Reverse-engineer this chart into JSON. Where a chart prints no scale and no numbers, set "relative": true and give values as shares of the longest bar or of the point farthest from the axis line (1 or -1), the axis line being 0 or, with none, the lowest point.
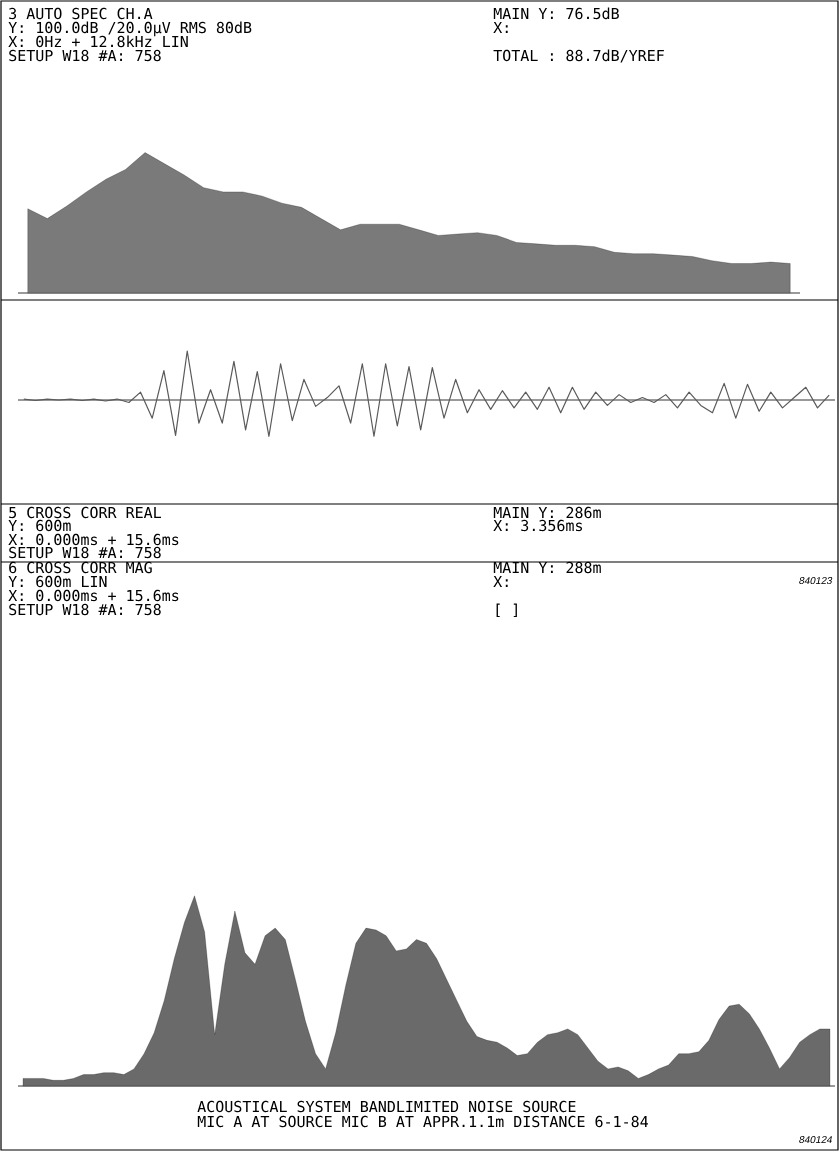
{
  "chart_data": [
    {
      "type": "area",
      "relative": true,
      "color": "#7a7a7a",
      "title": "3 AUTO SPEC CH.A",
      "annotations": [
        "Y: 100.0dB /20.0μV RMS 80dB",
        "X: 0Hz + 12.8kHz LIN",
        "SETUP W18 #A: 758",
        "MAIN Y: 76.5dB",
        "X:",
        "TOTAL : 88.7dB/YREF"
      ],
      "categories": [
        null,
        null,
        null,
        null,
        null,
        null,
        null,
        null,
        null,
        null,
        null,
        null,
        null,
        null,
        null,
        null,
        null,
        null,
        null,
        null,
        null,
        null,
        null,
        null,
        null,
        null,
        null,
        null,
        null,
        null,
        null,
        null,
        null,
        null,
        null,
        null,
        null,
        null,
        null,
        null
      ],
      "values": [
        0.6,
        0.53,
        0.62,
        0.72,
        0.81,
        0.88,
        1.0,
        0.92,
        0.84,
        0.75,
        0.72,
        0.72,
        0.69,
        0.64,
        0.61,
        0.53,
        0.45,
        0.49,
        0.49,
        0.49,
        0.45,
        0.41,
        0.42,
        0.43,
        0.41,
        0.36,
        0.35,
        0.34,
        0.34,
        0.33,
        0.29,
        0.28,
        0.28,
        0.27,
        0.26,
        0.23,
        0.21,
        0.21,
        0.22,
        0.21
      ]
    },
    {
      "type": "line",
      "relative": true,
      "color": "#5a5a5a",
      "title": "5 CROSS CORR REAL",
      "annotations": [
        "Y: 600m",
        "X: 0.000ms + 15.6ms",
        "SETUP W18 #A: 758",
        "MAIN Y: 286m",
        "X: 3.356ms",
        "840123"
      ],
      "categories": [
        null,
        null,
        null,
        null,
        null,
        null,
        null,
        null,
        null,
        null,
        null,
        null,
        null,
        null,
        null,
        null,
        null,
        null,
        null,
        null,
        null,
        null,
        null,
        null,
        null,
        null,
        null,
        null,
        null,
        null,
        null,
        null,
        null,
        null,
        null,
        null,
        null,
        null,
        null,
        null,
        null,
        null,
        null,
        null,
        null,
        null,
        null,
        null,
        null,
        null,
        null,
        null,
        null,
        null,
        null,
        null,
        null,
        null,
        null,
        null,
        null,
        null,
        null,
        null,
        null,
        null,
        null,
        null,
        null,
        null
      ],
      "values": [
        0.02,
        -0.01,
        0.02,
        0.0,
        0.02,
        -0.01,
        0.02,
        -0.02,
        0.02,
        -0.05,
        0.16,
        -0.37,
        0.6,
        -0.72,
        1.0,
        -0.47,
        0.21,
        -0.47,
        0.79,
        -0.61,
        0.58,
        -0.74,
        0.74,
        -0.42,
        0.42,
        -0.13,
        0.05,
        0.29,
        -0.47,
        0.74,
        -0.74,
        0.74,
        -0.53,
        0.68,
        -0.61,
        0.66,
        -0.37,
        0.42,
        -0.26,
        0.21,
        -0.19,
        0.19,
        -0.16,
        0.16,
        -0.19,
        0.26,
        -0.26,
        0.26,
        -0.19,
        0.16,
        -0.11,
        0.11,
        -0.05,
        0.05,
        -0.05,
        0.11,
        -0.16,
        0.16,
        -0.11,
        -0.26,
        0.34,
        -0.37,
        0.32,
        -0.23,
        0.16,
        -0.16,
        0.05,
        0.26,
        -0.16,
        0.1
      ]
    },
    {
      "type": "area",
      "relative": true,
      "color": "#6a6a6a",
      "title": "6 CROSS CORR MAG",
      "annotations": [
        "Y: 600m LIN",
        "X: 0.000ms + 15.6ms",
        "SETUP W18 #A: 758",
        "MAIN Y: 288m",
        "X:",
        "[ ]",
        "ACOUSTICAL SYSTEM    BANDLIMITED NOISE SOURCE",
        "MIC A AT SOURCE MIC B AT APPR.1.1m DISTANCE 6-1-84",
        "840124"
      ],
      "categories": [
        null,
        null,
        null,
        null,
        null,
        null,
        null,
        null,
        null,
        null,
        null,
        null,
        null,
        null,
        null,
        null,
        null,
        null,
        null,
        null,
        null,
        null,
        null,
        null,
        null,
        null,
        null,
        null,
        null,
        null,
        null,
        null,
        null,
        null,
        null,
        null,
        null,
        null,
        null,
        null,
        null,
        null,
        null,
        null,
        null,
        null,
        null,
        null,
        null,
        null,
        null,
        null,
        null,
        null,
        null,
        null,
        null,
        null,
        null,
        null,
        null,
        null,
        null,
        null,
        null,
        null,
        null,
        null,
        null,
        null,
        null,
        null,
        null,
        null,
        null,
        null,
        null,
        null,
        null,
        null,
        null
      ],
      "values": [
        0.04,
        0.04,
        0.04,
        0.03,
        0.03,
        0.04,
        0.06,
        0.06,
        0.07,
        0.07,
        0.06,
        0.09,
        0.17,
        0.28,
        0.45,
        0.67,
        0.86,
        1.0,
        0.81,
        0.27,
        0.64,
        0.92,
        0.7,
        0.64,
        0.79,
        0.83,
        0.77,
        0.56,
        0.34,
        0.17,
        0.09,
        0.28,
        0.53,
        0.75,
        0.83,
        0.82,
        0.79,
        0.71,
        0.72,
        0.77,
        0.75,
        0.67,
        0.56,
        0.45,
        0.34,
        0.26,
        0.24,
        0.23,
        0.2,
        0.16,
        0.17,
        0.23,
        0.27,
        0.28,
        0.3,
        0.27,
        0.2,
        0.13,
        0.09,
        0.1,
        0.08,
        0.04,
        0.06,
        0.09,
        0.11,
        0.17,
        0.17,
        0.18,
        0.24,
        0.35,
        0.42,
        0.43,
        0.38,
        0.3,
        0.2,
        0.09,
        0.15,
        0.23,
        0.27,
        0.3,
        0.3
      ]
    }
  ]
}
